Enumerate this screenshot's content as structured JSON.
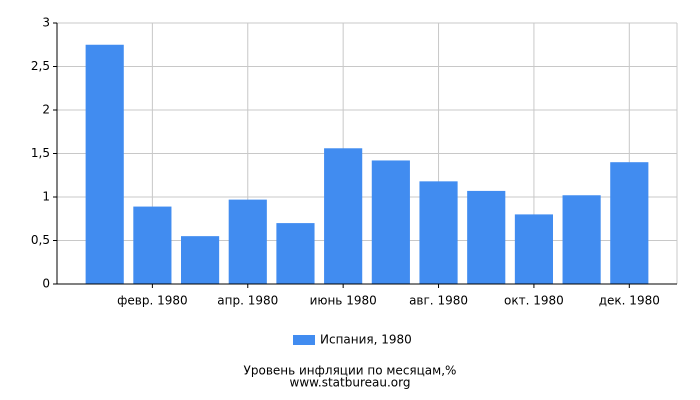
{
  "chart_data": {
    "type": "bar",
    "title": "Уровень инфляции по месяцам,%",
    "source": "www.statbureau.org",
    "categories": [
      null,
      "февр. 1980",
      null,
      "апр. 1980",
      null,
      "июнь 1980",
      null,
      "авг. 1980",
      null,
      "окт. 1980",
      null,
      "дек. 1980"
    ],
    "series": [
      {
        "name": "Испания, 1980",
        "color": "#418cf0",
        "values": [
          2.75,
          0.89,
          0.55,
          0.97,
          0.7,
          1.56,
          1.42,
          1.18,
          1.07,
          0.8,
          1.02,
          1.4
        ]
      }
    ],
    "ylim": [
      0,
      3
    ],
    "yticks": [
      0,
      {
        "value": 0.5,
        "label": "0,5"
      },
      1,
      {
        "value": 1.5,
        "label": "1,5"
      },
      2,
      {
        "value": 2.5,
        "label": "2,5"
      },
      3
    ],
    "grid": true
  }
}
